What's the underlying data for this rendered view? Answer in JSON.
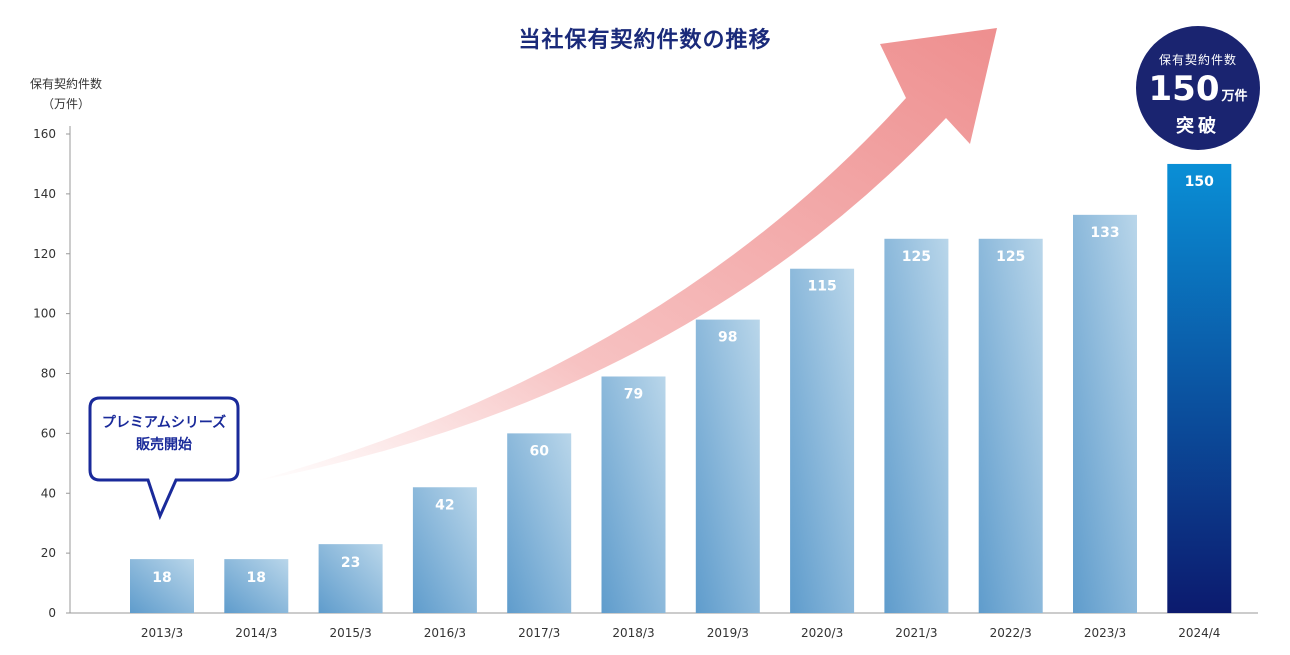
{
  "chart_data": {
    "type": "bar",
    "title": "当社保有契約件数の推移",
    "ylabel_line1": "保有契約件数",
    "ylabel_line2": "（万件）",
    "categories": [
      "2013/3",
      "2014/3",
      "2015/3",
      "2016/3",
      "2017/3",
      "2018/3",
      "2019/3",
      "2020/3",
      "2021/3",
      "2022/3",
      "2023/3",
      "2024/4"
    ],
    "values": [
      18,
      18,
      23,
      42,
      60,
      79,
      98,
      115,
      125,
      125,
      133,
      150
    ],
    "ylim": [
      0,
      160
    ],
    "yticks": [
      0,
      20,
      40,
      60,
      80,
      100,
      120,
      140,
      160
    ],
    "grid": false,
    "highlight_index": 11,
    "colors": {
      "bar_light": "#b9d6ea",
      "bar_dark": "#5f9ccc",
      "highlight_top": "#0a8fd6",
      "highlight_bottom": "#0c1a6e",
      "arrow": "#ee8f8f",
      "title": "#1a2a7a",
      "callout_border": "#1a2a9a"
    }
  },
  "badge": {
    "line1": "保有契約件数",
    "number": "150",
    "unit": "万件",
    "line3": "突破"
  },
  "callout": {
    "line1": "プレミアムシリーズ",
    "line2": "販売開始"
  }
}
